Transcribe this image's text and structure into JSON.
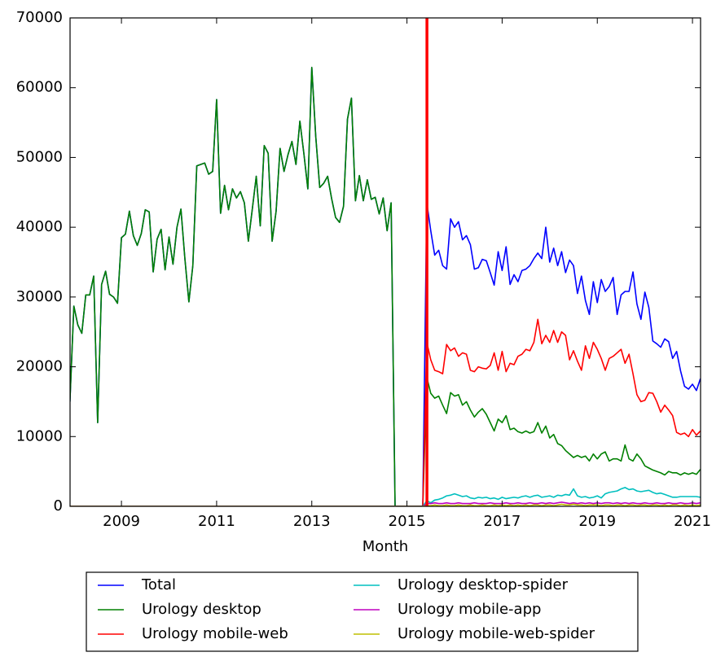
{
  "chart_data": {
    "type": "line",
    "xlabel": "Month",
    "xlim": [
      2007.92,
      2021.17
    ],
    "xticks": [
      2009,
      2011,
      2013,
      2015,
      2017,
      2019,
      2021
    ],
    "ylim": [
      0,
      70000
    ],
    "yticks": [
      0,
      10000,
      20000,
      30000,
      40000,
      50000,
      60000,
      70000
    ],
    "legend": "below",
    "vlines": [
      {
        "x": 2015.42,
        "color": "#ff0000"
      }
    ],
    "x": [
      2007.917,
      2008.0,
      2008.083,
      2008.167,
      2008.25,
      2008.333,
      2008.417,
      2008.5,
      2008.583,
      2008.667,
      2008.75,
      2008.833,
      2008.917,
      2009.0,
      2009.083,
      2009.167,
      2009.25,
      2009.333,
      2009.417,
      2009.5,
      2009.583,
      2009.667,
      2009.75,
      2009.833,
      2009.917,
      2010.0,
      2010.083,
      2010.167,
      2010.25,
      2010.333,
      2010.417,
      2010.5,
      2010.583,
      2010.667,
      2010.75,
      2010.833,
      2010.917,
      2011.0,
      2011.083,
      2011.167,
      2011.25,
      2011.333,
      2011.417,
      2011.5,
      2011.583,
      2011.667,
      2011.75,
      2011.833,
      2011.917,
      2012.0,
      2012.083,
      2012.167,
      2012.25,
      2012.333,
      2012.417,
      2012.5,
      2012.583,
      2012.667,
      2012.75,
      2012.833,
      2012.917,
      2013.0,
      2013.083,
      2013.167,
      2013.25,
      2013.333,
      2013.417,
      2013.5,
      2013.583,
      2013.667,
      2013.75,
      2013.833,
      2013.917,
      2014.0,
      2014.083,
      2014.167,
      2014.25,
      2014.333,
      2014.417,
      2014.5,
      2014.583,
      2014.667,
      2014.75,
      2014.833,
      2014.917,
      2015.0,
      2015.083,
      2015.167,
      2015.25,
      2015.333,
      2015.417,
      2015.5,
      2015.583,
      2015.667,
      2015.75,
      2015.833,
      2015.917,
      2016.0,
      2016.083,
      2016.167,
      2016.25,
      2016.333,
      2016.417,
      2016.5,
      2016.583,
      2016.667,
      2016.75,
      2016.833,
      2016.917,
      2017.0,
      2017.083,
      2017.167,
      2017.25,
      2017.333,
      2017.417,
      2017.5,
      2017.583,
      2017.667,
      2017.75,
      2017.833,
      2017.917,
      2018.0,
      2018.083,
      2018.167,
      2018.25,
      2018.333,
      2018.417,
      2018.5,
      2018.583,
      2018.667,
      2018.75,
      2018.833,
      2018.917,
      2019.0,
      2019.083,
      2019.167,
      2019.25,
      2019.333,
      2019.417,
      2019.5,
      2019.583,
      2019.667,
      2019.75,
      2019.833,
      2019.917,
      2020.0,
      2020.083,
      2020.167,
      2020.25,
      2020.333,
      2020.417,
      2020.5,
      2020.583,
      2020.667,
      2020.75,
      2020.833,
      2020.917,
      2021.0,
      2021.083,
      2021.167
    ],
    "series": [
      {
        "name": "Total",
        "color": "#0000ff",
        "values": [
          15000,
          28700,
          26000,
          24800,
          30300,
          30300,
          33000,
          12000,
          31800,
          33700,
          30400,
          30000,
          29100,
          38500,
          39000,
          42300,
          38800,
          37400,
          39100,
          42500,
          42200,
          33600,
          38300,
          39700,
          33900,
          38600,
          34700,
          40000,
          42600,
          35500,
          29300,
          34500,
          48800,
          49000,
          49200,
          47600,
          48000,
          58300,
          42000,
          46000,
          42500,
          45500,
          44200,
          45100,
          43500,
          38000,
          42600,
          47300,
          40200,
          51700,
          50600,
          38000,
          42300,
          51300,
          48000,
          50400,
          52300,
          49000,
          55200,
          50600,
          45500,
          62900,
          53000,
          45700,
          46300,
          47300,
          44100,
          41400,
          40700,
          43000,
          55500,
          58500,
          43800,
          47400,
          43800,
          46800,
          44000,
          44300,
          41900,
          44200,
          39500,
          43500,
          0,
          0,
          0,
          0,
          0,
          0,
          0,
          0,
          43500,
          39500,
          36000,
          36700,
          34500,
          34000,
          41200,
          40000,
          40800,
          38200,
          38800,
          37500,
          34000,
          34200,
          35400,
          35200,
          33500,
          31700,
          36500,
          33800,
          37200,
          31800,
          33200,
          32200,
          33800,
          34000,
          34500,
          35500,
          36300,
          35500,
          40000,
          35000,
          37000,
          34500,
          36500,
          33500,
          35300,
          34500,
          30500,
          33000,
          29500,
          27500,
          32200,
          29200,
          32500,
          30800,
          31500,
          32800,
          27500,
          30300,
          30800,
          30800,
          33600,
          29000,
          26800,
          30700,
          28500,
          23700,
          23300,
          22800,
          24000,
          23600,
          21200,
          22200,
          19400,
          17200,
          16800,
          17500,
          16600,
          18300
        ]
      },
      {
        "name": "Urology desktop",
        "color": "#008000",
        "values": [
          15000,
          28700,
          26000,
          24800,
          30300,
          30300,
          33000,
          12000,
          31800,
          33700,
          30400,
          30000,
          29100,
          38500,
          39000,
          42300,
          38800,
          37400,
          39100,
          42500,
          42200,
          33600,
          38300,
          39700,
          33900,
          38600,
          34700,
          40000,
          42600,
          35500,
          29300,
          34500,
          48800,
          49000,
          49200,
          47600,
          48000,
          58300,
          42000,
          46000,
          42500,
          45500,
          44200,
          45100,
          43500,
          38000,
          42600,
          47300,
          40200,
          51700,
          50600,
          38000,
          42300,
          51300,
          48000,
          50400,
          52300,
          49000,
          55200,
          50600,
          45500,
          62900,
          53000,
          45700,
          46300,
          47300,
          44100,
          41400,
          40700,
          43000,
          55500,
          58500,
          43800,
          47400,
          43800,
          46800,
          44000,
          44300,
          41900,
          44200,
          39500,
          43500,
          0,
          0,
          0,
          0,
          0,
          0,
          0,
          0,
          18500,
          16200,
          15500,
          15800,
          14500,
          13300,
          16300,
          15800,
          16000,
          14500,
          15000,
          13800,
          12800,
          13500,
          14000,
          13200,
          12000,
          10800,
          12500,
          12000,
          13000,
          11000,
          11200,
          10700,
          10500,
          10800,
          10500,
          10700,
          12000,
          10500,
          11500,
          9800,
          10300,
          9000,
          8700,
          8000,
          7500,
          7000,
          7300,
          7000,
          7200,
          6500,
          7500,
          6800,
          7500,
          7800,
          6500,
          6800,
          6800,
          6500,
          8800,
          6800,
          6500,
          7500,
          6800,
          5800,
          5500,
          5200,
          5000,
          4800,
          4500,
          5000,
          4800,
          4800,
          4500,
          4800,
          4600,
          4800,
          4600,
          5300
        ]
      },
      {
        "name": "Urology mobile-web",
        "color": "#ff0000",
        "values": [
          0,
          0,
          0,
          0,
          0,
          0,
          0,
          0,
          0,
          0,
          0,
          0,
          0,
          0,
          0,
          0,
          0,
          0,
          0,
          0,
          0,
          0,
          0,
          0,
          0,
          0,
          0,
          0,
          0,
          0,
          0,
          0,
          0,
          0,
          0,
          0,
          0,
          0,
          0,
          0,
          0,
          0,
          0,
          0,
          0,
          0,
          0,
          0,
          0,
          0,
          0,
          0,
          0,
          0,
          0,
          0,
          0,
          0,
          0,
          0,
          0,
          0,
          0,
          0,
          0,
          0,
          0,
          0,
          0,
          0,
          0,
          0,
          0,
          0,
          0,
          0,
          0,
          0,
          0,
          0,
          0,
          0,
          0,
          0,
          0,
          0,
          0,
          0,
          0,
          0,
          23500,
          21000,
          19500,
          19300,
          19000,
          23200,
          22300,
          22700,
          21500,
          22000,
          21800,
          19500,
          19300,
          20000,
          19800,
          19700,
          20200,
          22000,
          19500,
          22200,
          19300,
          20500,
          20300,
          21500,
          21800,
          22500,
          22300,
          23500,
          26800,
          23300,
          24500,
          23500,
          25200,
          23500,
          25000,
          24500,
          21000,
          22300,
          20800,
          19500,
          23000,
          21200,
          23500,
          22500,
          21200,
          19500,
          21200,
          21500,
          22000,
          22500,
          20500,
          21800,
          19000,
          16000,
          15000,
          15200,
          16300,
          16200,
          15000,
          13500,
          14500,
          13800,
          13000,
          10600,
          10300,
          10500,
          10000,
          11000,
          10200,
          10800
        ]
      },
      {
        "name": "Urology desktop-spider",
        "color": "#00bfbf",
        "values": [
          0,
          0,
          0,
          0,
          0,
          0,
          0,
          0,
          0,
          0,
          0,
          0,
          0,
          0,
          0,
          0,
          0,
          0,
          0,
          0,
          0,
          0,
          0,
          0,
          0,
          0,
          0,
          0,
          0,
          0,
          0,
          0,
          0,
          0,
          0,
          0,
          0,
          0,
          0,
          0,
          0,
          0,
          0,
          0,
          0,
          0,
          0,
          0,
          0,
          0,
          0,
          0,
          0,
          0,
          0,
          0,
          0,
          0,
          0,
          0,
          0,
          0,
          0,
          0,
          0,
          0,
          0,
          0,
          0,
          0,
          0,
          0,
          0,
          0,
          0,
          0,
          0,
          0,
          0,
          0,
          0,
          0,
          0,
          0,
          0,
          0,
          0,
          0,
          0,
          0,
          800,
          500,
          900,
          1000,
          1200,
          1500,
          1600,
          1800,
          1600,
          1400,
          1500,
          1200,
          1100,
          1300,
          1200,
          1300,
          1100,
          1200,
          1000,
          1300,
          1100,
          1200,
          1300,
          1200,
          1400,
          1500,
          1300,
          1500,
          1600,
          1300,
          1400,
          1500,
          1300,
          1600,
          1500,
          1700,
          1600,
          2500,
          1500,
          1300,
          1400,
          1200,
          1300,
          1500,
          1200,
          1800,
          2000,
          2100,
          2200,
          2500,
          2700,
          2400,
          2500,
          2200,
          2100,
          2200,
          2300,
          2000,
          1800,
          1900,
          1700,
          1500,
          1300,
          1300,
          1400,
          1400,
          1400,
          1400,
          1400,
          1300
        ]
      },
      {
        "name": "Urology mobile-app",
        "color": "#bf00bf",
        "values": [
          0,
          0,
          0,
          0,
          0,
          0,
          0,
          0,
          0,
          0,
          0,
          0,
          0,
          0,
          0,
          0,
          0,
          0,
          0,
          0,
          0,
          0,
          0,
          0,
          0,
          0,
          0,
          0,
          0,
          0,
          0,
          0,
          0,
          0,
          0,
          0,
          0,
          0,
          0,
          0,
          0,
          0,
          0,
          0,
          0,
          0,
          0,
          0,
          0,
          0,
          0,
          0,
          0,
          0,
          0,
          0,
          0,
          0,
          0,
          0,
          0,
          0,
          0,
          0,
          0,
          0,
          0,
          0,
          0,
          0,
          0,
          0,
          0,
          0,
          0,
          0,
          0,
          0,
          0,
          0,
          0,
          0,
          0,
          0,
          0,
          0,
          0,
          0,
          0,
          0,
          400,
          400,
          500,
          400,
          400,
          500,
          400,
          400,
          500,
          400,
          400,
          400,
          500,
          400,
          400,
          400,
          500,
          400,
          400,
          400,
          500,
          400,
          400,
          500,
          400,
          400,
          500,
          400,
          400,
          500,
          400,
          500,
          400,
          500,
          600,
          500,
          400,
          500,
          400,
          500,
          400,
          500,
          400,
          500,
          400,
          500,
          500,
          400,
          500,
          400,
          500,
          400,
          500,
          400,
          400,
          500,
          400,
          400,
          500,
          400,
          400,
          500,
          400,
          400,
          500,
          400,
          400,
          500,
          400,
          500
        ]
      },
      {
        "name": "Urology mobile-web-spider",
        "color": "#bfbf00",
        "values": [
          0,
          0,
          0,
          0,
          0,
          0,
          0,
          0,
          0,
          0,
          0,
          0,
          0,
          0,
          0,
          0,
          0,
          0,
          0,
          0,
          0,
          0,
          0,
          0,
          0,
          0,
          0,
          0,
          0,
          0,
          0,
          0,
          0,
          0,
          0,
          0,
          0,
          0,
          0,
          0,
          0,
          0,
          0,
          0,
          0,
          0,
          0,
          0,
          0,
          0,
          0,
          0,
          0,
          0,
          0,
          0,
          0,
          0,
          0,
          0,
          0,
          0,
          0,
          0,
          0,
          0,
          0,
          0,
          0,
          0,
          0,
          0,
          0,
          0,
          0,
          0,
          0,
          0,
          0,
          0,
          0,
          0,
          0,
          0,
          0,
          0,
          0,
          0,
          0,
          0,
          100,
          100,
          200,
          100,
          100,
          200,
          100,
          100,
          200,
          100,
          100,
          200,
          100,
          100,
          200,
          100,
          100,
          200,
          100,
          200,
          100,
          200,
          100,
          200,
          100,
          200,
          100,
          200,
          200,
          100,
          200,
          200,
          100,
          200,
          300,
          200,
          200,
          300,
          200,
          200,
          100,
          200,
          200,
          200,
          100,
          200,
          200,
          100,
          200,
          200,
          100,
          200,
          200,
          100,
          200,
          200,
          100,
          200,
          200,
          100,
          200,
          100,
          200,
          200,
          100,
          200,
          100,
          200,
          100,
          200
        ]
      }
    ]
  }
}
